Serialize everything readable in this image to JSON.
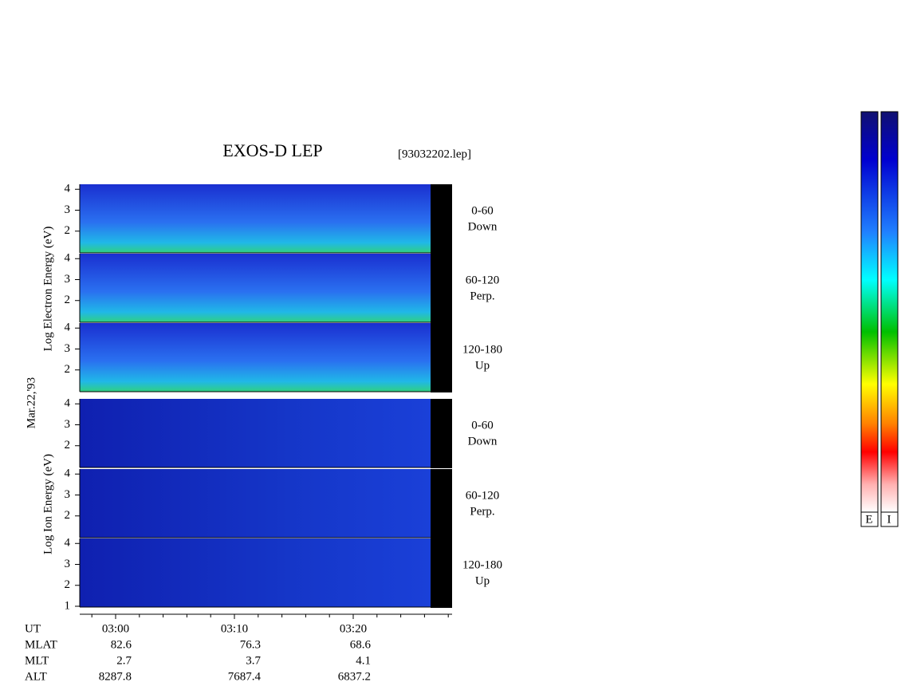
{
  "chart_data": {
    "type": "spectrogram",
    "title": "EXOS-D LEP",
    "file": "[93032202.lep]",
    "date": "Mar.22,'93",
    "electron_axis_label": "Log Electron Energy (eV)",
    "ion_axis_label": "Log Ion Energy (eV)",
    "ylim": [
      1,
      4.2
    ],
    "panels": [
      {
        "species": "electron",
        "angle": "0-60",
        "direction": "Down",
        "yticks": [
          2,
          3,
          4
        ]
      },
      {
        "species": "electron",
        "angle": "60-120",
        "direction": "Perp.",
        "yticks": [
          2,
          3,
          4
        ]
      },
      {
        "species": "electron",
        "angle": "120-180",
        "direction": "Up",
        "yticks": [
          2,
          3,
          4
        ]
      },
      {
        "species": "ion",
        "angle": "0-60",
        "direction": "Down",
        "yticks": [
          2,
          3,
          4
        ]
      },
      {
        "species": "ion",
        "angle": "60-120",
        "direction": "Perp.",
        "yticks": [
          2,
          3,
          4
        ]
      },
      {
        "species": "ion",
        "angle": "120-180",
        "direction": "Up",
        "yticks": [
          1,
          2,
          3,
          4
        ]
      }
    ],
    "time_labels": [
      "03:00",
      "03:10",
      "03:20"
    ],
    "rows": [
      "UT",
      "MLAT",
      "MLT",
      "ALT"
    ],
    "ephemeris": [
      {
        "MLAT": 82.6,
        "MLT": 2.7,
        "ALT": 8287.8
      },
      {
        "MLAT": 76.3,
        "MLT": 3.7,
        "ALT": 7687.4
      },
      {
        "MLAT": 68.6,
        "MLT": 4.1,
        "ALT": 6837.2
      }
    ],
    "colorbar_labels": [
      "E",
      "I"
    ]
  }
}
